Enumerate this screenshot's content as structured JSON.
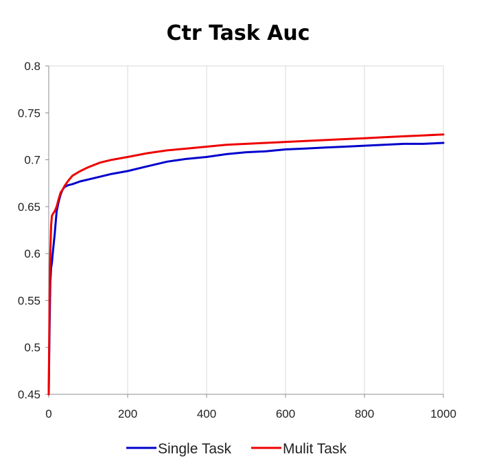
{
  "chart_data": {
    "type": "line",
    "title": "Ctr Task Auc",
    "xlabel": "",
    "ylabel": "",
    "xlim": [
      0,
      1000
    ],
    "ylim": [
      0.45,
      0.8
    ],
    "x_ticks": [
      0,
      200,
      400,
      600,
      800,
      1000
    ],
    "y_ticks": [
      0.45,
      0.5,
      0.55,
      0.6,
      0.65,
      0.7,
      0.75,
      0.8
    ],
    "y_tick_labels": [
      "0.45",
      "0.5",
      "0.55",
      "0.6",
      "0.65",
      "0.7",
      "0.75",
      "0.8"
    ],
    "grid": "vertical",
    "legend_position": "bottom",
    "series": [
      {
        "name": "Single Task",
        "color": "#0000cc",
        "x": [
          0,
          2,
          4,
          6,
          8,
          10,
          15,
          20,
          25,
          30,
          35,
          40,
          50,
          60,
          80,
          100,
          130,
          160,
          200,
          250,
          300,
          350,
          400,
          450,
          500,
          550,
          600,
          650,
          700,
          750,
          800,
          850,
          900,
          950,
          1000
        ],
        "y": [
          0.45,
          0.52,
          0.57,
          0.585,
          0.59,
          0.6,
          0.62,
          0.645,
          0.655,
          0.663,
          0.668,
          0.671,
          0.673,
          0.674,
          0.677,
          0.679,
          0.682,
          0.685,
          0.688,
          0.693,
          0.698,
          0.701,
          0.703,
          0.706,
          0.708,
          0.709,
          0.711,
          0.712,
          0.713,
          0.714,
          0.715,
          0.716,
          0.717,
          0.717,
          0.718
        ]
      },
      {
        "name": "Mulit Task",
        "color": "#ee0000",
        "x": [
          0,
          2,
          4,
          6,
          8,
          10,
          15,
          20,
          25,
          30,
          35,
          40,
          50,
          60,
          80,
          100,
          130,
          160,
          200,
          250,
          300,
          350,
          400,
          450,
          500,
          550,
          600,
          650,
          700,
          750,
          800,
          850,
          900,
          950,
          1000
        ],
        "y": [
          0.45,
          0.55,
          0.6,
          0.63,
          0.64,
          0.642,
          0.645,
          0.65,
          0.658,
          0.665,
          0.668,
          0.672,
          0.678,
          0.683,
          0.688,
          0.692,
          0.697,
          0.7,
          0.703,
          0.707,
          0.71,
          0.712,
          0.714,
          0.716,
          0.717,
          0.718,
          0.719,
          0.72,
          0.721,
          0.722,
          0.723,
          0.724,
          0.725,
          0.726,
          0.727
        ]
      }
    ]
  }
}
